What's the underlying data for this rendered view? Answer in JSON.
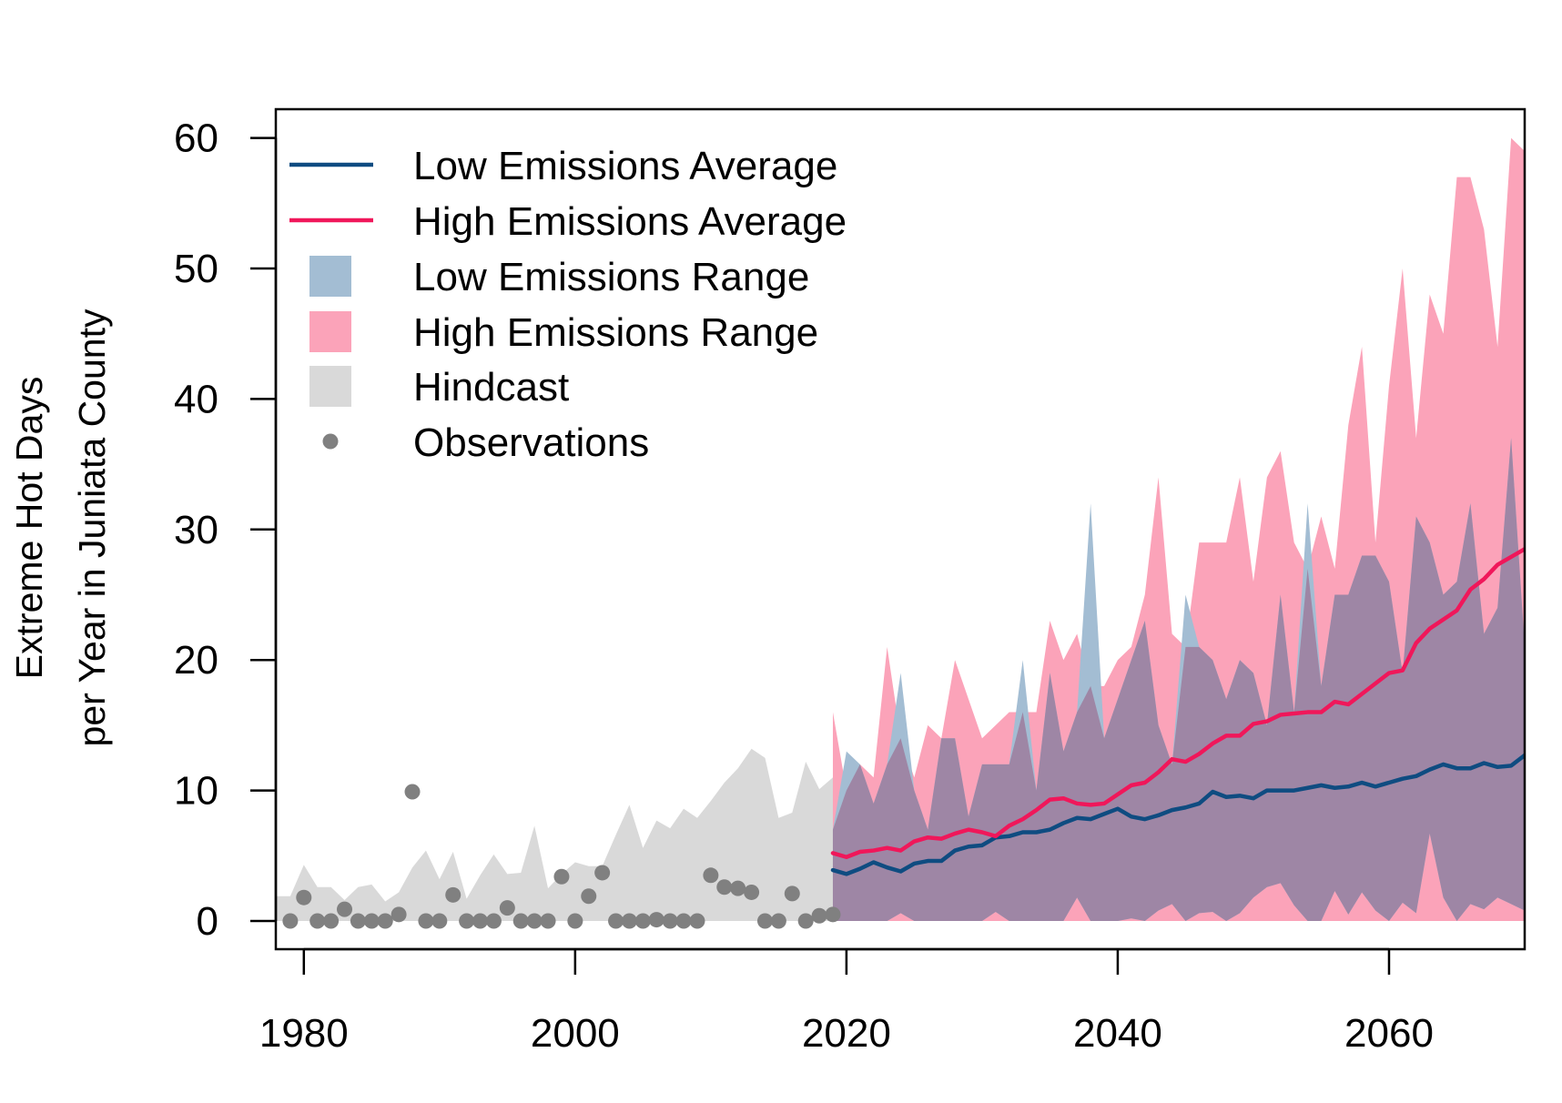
{
  "chart_data": {
    "type": "area",
    "xlabel": "",
    "ylabel": [
      "Extreme Hot Days",
      "per Year in Juniata County"
    ],
    "xlim": [
      1978,
      2070
    ],
    "ylim": [
      -2.3,
      60
    ],
    "xticks": [
      1980,
      2000,
      2020,
      2040,
      2060
    ],
    "yticks": [
      0,
      10,
      20,
      30,
      40,
      50,
      60
    ],
    "grid": false,
    "legend": {
      "position": "top-left",
      "entries": [
        {
          "label": "Low Emissions Average",
          "kind": "line",
          "color": "#0f4c81"
        },
        {
          "label": "High Emissions Average",
          "kind": "line",
          "color": "#f0175a"
        },
        {
          "label": "Low Emissions Range",
          "kind": "box",
          "color": "#a3bdd3"
        },
        {
          "label": "High Emissions Range",
          "kind": "box",
          "color": "#fba3b9"
        },
        {
          "label": "Hindcast",
          "kind": "box",
          "color": "#d9d9d9"
        },
        {
          "label": "Observations",
          "kind": "dot",
          "color": "#808080"
        }
      ]
    },
    "colors": {
      "low_avg": "#0f4c81",
      "high_avg": "#f0175a",
      "low_range": "#a3bdd3",
      "high_range": "#fba3b9",
      "overlap": "#9e86a5",
      "hindcast": "#d9d9d9",
      "observations": "#808080"
    },
    "observations": {
      "x": [
        1979,
        1980,
        1981,
        1982,
        1983,
        1984,
        1985,
        1986,
        1987,
        1988,
        1989,
        1990,
        1991,
        1992,
        1993,
        1994,
        1995,
        1996,
        1997,
        1998,
        1999,
        2000,
        2001,
        2002,
        2003,
        2004,
        2005,
        2006,
        2007,
        2008,
        2009,
        2010,
        2011,
        2012,
        2013,
        2014,
        2015,
        2016,
        2017,
        2018,
        2019
      ],
      "y": [
        0,
        1.8,
        0,
        0,
        0.9,
        0,
        0,
        0,
        0.5,
        9.9,
        0,
        0,
        2,
        0,
        0,
        0,
        1,
        0,
        0,
        0,
        3.4,
        0,
        1.9,
        3.7,
        0,
        0,
        0,
        0.1,
        0,
        0,
        0,
        3.5,
        2.6,
        2.5,
        2.2,
        0,
        0,
        2.1,
        0,
        0.4,
        0.5
      ]
    },
    "hindcast": {
      "x": [
        1978,
        1979,
        1980,
        1981,
        1982,
        1983,
        1984,
        1985,
        1986,
        1987,
        1988,
        1989,
        1990,
        1991,
        1992,
        1993,
        1994,
        1995,
        1996,
        1997,
        1998,
        1999,
        2000,
        2001,
        2002,
        2003,
        2004,
        2005,
        2006,
        2007,
        2008,
        2009,
        2010,
        2011,
        2012,
        2013,
        2014,
        2015,
        2016,
        2017,
        2018,
        2019
      ],
      "upper": [
        1.9,
        1.9,
        4.3,
        2.6,
        2.6,
        1.6,
        2.6,
        2.8,
        1.5,
        2.2,
        4.1,
        5.4,
        3.2,
        5.3,
        1.7,
        3.5,
        5.1,
        3.6,
        3.7,
        7.3,
        2.5,
        3.6,
        4.5,
        4.2,
        4.2,
        6.6,
        8.9,
        5.6,
        7.7,
        7.1,
        8.6,
        7.9,
        9.2,
        10.6,
        11.7,
        13.2,
        12.5,
        7.9,
        8.3,
        12.2,
        10.1,
        11
      ],
      "lower": [
        0,
        0,
        0,
        0,
        0,
        0,
        0,
        0,
        0,
        0,
        0,
        0,
        0,
        0,
        0,
        0,
        0,
        0,
        0,
        0,
        0,
        0,
        0,
        0,
        0,
        0,
        0,
        0,
        0,
        0,
        0,
        0,
        0,
        0,
        0,
        0,
        0,
        0,
        0,
        0,
        0,
        0
      ]
    },
    "series": [
      {
        "name": "Low Emissions Average",
        "x": [
          2019,
          2020,
          2021,
          2022,
          2023,
          2024,
          2025,
          2026,
          2027,
          2028,
          2029,
          2030,
          2031,
          2032,
          2033,
          2034,
          2035,
          2036,
          2037,
          2038,
          2039,
          2040,
          2041,
          2042,
          2043,
          2044,
          2045,
          2046,
          2047,
          2048,
          2049,
          2050,
          2051,
          2052,
          2053,
          2054,
          2055,
          2056,
          2057,
          2058,
          2059,
          2060,
          2061,
          2062,
          2063,
          2064,
          2065,
          2066,
          2067,
          2068,
          2069,
          2070
        ],
        "values": [
          3.9,
          3.6,
          4.0,
          4.5,
          4.1,
          3.8,
          4.4,
          4.6,
          4.6,
          5.4,
          5.7,
          5.8,
          6.4,
          6.5,
          6.8,
          6.8,
          7.0,
          7.5,
          7.9,
          7.8,
          8.2,
          8.6,
          8.0,
          7.8,
          8.1,
          8.5,
          8.7,
          9.0,
          9.9,
          9.5,
          9.6,
          9.4,
          10.0,
          10.0,
          10.0,
          10.2,
          10.4,
          10.2,
          10.3,
          10.6,
          10.3,
          10.6,
          10.9,
          11.1,
          11.6,
          12.0,
          11.7,
          11.7,
          12.1,
          11.8,
          11.9,
          12.7
        ]
      },
      {
        "name": "High Emissions Average",
        "x": [
          2019,
          2020,
          2021,
          2022,
          2023,
          2024,
          2025,
          2026,
          2027,
          2028,
          2029,
          2030,
          2031,
          2032,
          2033,
          2034,
          2035,
          2036,
          2037,
          2038,
          2039,
          2040,
          2041,
          2042,
          2043,
          2044,
          2045,
          2046,
          2047,
          2048,
          2049,
          2050,
          2051,
          2052,
          2053,
          2054,
          2055,
          2056,
          2057,
          2058,
          2059,
          2060,
          2061,
          2062,
          2063,
          2064,
          2065,
          2066,
          2067,
          2068,
          2069,
          2070
        ],
        "values": [
          5.2,
          4.9,
          5.3,
          5.4,
          5.6,
          5.4,
          6.1,
          6.4,
          6.3,
          6.7,
          7.0,
          6.8,
          6.5,
          7.3,
          7.8,
          8.5,
          9.3,
          9.4,
          9.0,
          8.9,
          9.0,
          9.7,
          10.4,
          10.6,
          11.4,
          12.4,
          12.2,
          12.8,
          13.6,
          14.2,
          14.2,
          15.1,
          15.3,
          15.8,
          15.9,
          16.0,
          16.0,
          16.8,
          16.6,
          17.4,
          18.2,
          19.0,
          19.2,
          21.3,
          22.4,
          23.1,
          23.8,
          25.4,
          26.2,
          27.3,
          27.9,
          28.5
        ]
      },
      {
        "name": "Low Emissions Range",
        "x": [
          2019,
          2020,
          2021,
          2022,
          2023,
          2024,
          2025,
          2026,
          2027,
          2028,
          2029,
          2030,
          2031,
          2032,
          2033,
          2034,
          2035,
          2036,
          2037,
          2038,
          2039,
          2040,
          2041,
          2042,
          2043,
          2044,
          2045,
          2046,
          2047,
          2048,
          2049,
          2050,
          2051,
          2052,
          2053,
          2054,
          2055,
          2056,
          2057,
          2058,
          2059,
          2060,
          2061,
          2062,
          2063,
          2064,
          2065,
          2066,
          2067,
          2068,
          2069,
          2070
        ],
        "upper": [
          7,
          13,
          12,
          9,
          12,
          19,
          10,
          7,
          14,
          14,
          8,
          12,
          12,
          12,
          20,
          10,
          19,
          13,
          16,
          32,
          14,
          17,
          20,
          23,
          15,
          12,
          25,
          21,
          20,
          17,
          20,
          19,
          15,
          25,
          16,
          32,
          18,
          25,
          25,
          28,
          28,
          26,
          19,
          31,
          29,
          25,
          26,
          32,
          22,
          24,
          37,
          21
        ],
        "lower": [
          0,
          0,
          0,
          0,
          0,
          0.6,
          0,
          0,
          0,
          0,
          0,
          0,
          0.7,
          0,
          0,
          0,
          0,
          0,
          1.8,
          0,
          0,
          0,
          0.2,
          0,
          0.8,
          1.3,
          0,
          0.6,
          0.7,
          0,
          0.6,
          1.8,
          2.6,
          2.9,
          1.2,
          0,
          0,
          2.3,
          0.5,
          2.2,
          0.8,
          0,
          1.4,
          0.6,
          6.7,
          1.8,
          0,
          1.3,
          0.9,
          1.8,
          1.3,
          0.8
        ]
      },
      {
        "name": "High Emissions Range",
        "x": [
          2019,
          2020,
          2021,
          2022,
          2023,
          2024,
          2025,
          2026,
          2027,
          2028,
          2029,
          2030,
          2031,
          2032,
          2033,
          2034,
          2035,
          2036,
          2037,
          2038,
          2039,
          2040,
          2041,
          2042,
          2043,
          2044,
          2045,
          2046,
          2047,
          2048,
          2049,
          2050,
          2051,
          2052,
          2053,
          2054,
          2055,
          2056,
          2057,
          2058,
          2059,
          2060,
          2061,
          2062,
          2063,
          2064,
          2065,
          2066,
          2067,
          2068,
          2069,
          2070
        ],
        "upper": [
          16,
          10,
          12,
          11,
          21,
          14,
          11,
          15,
          14,
          20,
          17,
          14,
          15,
          16,
          16,
          16,
          23,
          20,
          22,
          18,
          18,
          20,
          21,
          25,
          34,
          22,
          21,
          29,
          29,
          29,
          34,
          26,
          34,
          36,
          29,
          27,
          31,
          27,
          38,
          44,
          29,
          41,
          50,
          37,
          48,
          45,
          57,
          57,
          53,
          44,
          60,
          59
        ],
        "lower": [
          0,
          0,
          0,
          0,
          0,
          0,
          0,
          0,
          0,
          0,
          0,
          0,
          0,
          0,
          0,
          0,
          0,
          0,
          0,
          0,
          0,
          0,
          0,
          0,
          0,
          0,
          0,
          0,
          0,
          0,
          0,
          0,
          0,
          0,
          0,
          0,
          0,
          0,
          0,
          0,
          0,
          0,
          0,
          0,
          0,
          0,
          0,
          0,
          0,
          0,
          0,
          0
        ]
      }
    ]
  }
}
